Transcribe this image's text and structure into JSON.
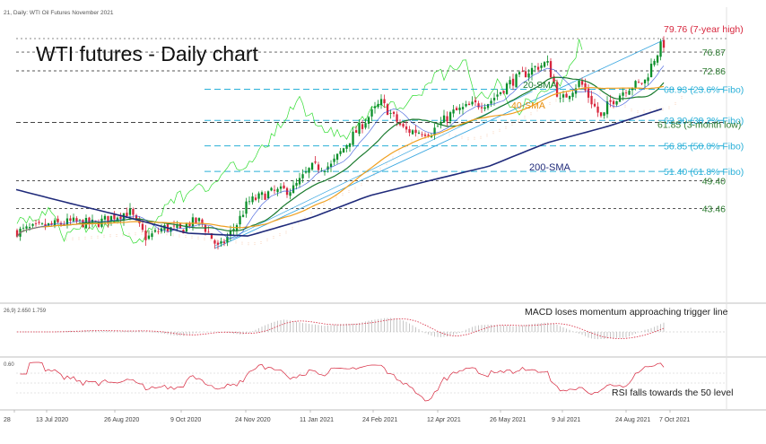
{
  "header": {
    "instrument_caption": "21, Daily:  WTI Oil Futures November 2021",
    "title": "WTI futures - Daily chart"
  },
  "colors": {
    "candle_up": "#0a8f2a",
    "candle_down": "#d7263d",
    "sma20": "#1a7a2e",
    "sma40": "#f0a020",
    "sma200": "#1f2a7a",
    "fibo": "#2ab0d8",
    "trendline": "#3aa7e0",
    "resistance_label": "#d7263d",
    "level_label": "#2e7d32",
    "lagging_line": "#33dd33",
    "macd_signal": "#d7263d",
    "rsi_line": "#d7263d"
  },
  "chart_data": [
    {
      "type": "candlestick",
      "title": "WTI futures - Daily chart",
      "x_tick_labels": [
        "28",
        "13 Jul 2020",
        "26 Aug 2020",
        "9 Oct 2020",
        "24 Nov 2020",
        "11 Jan 2021",
        "24 Feb 2021",
        "12 Apr 2021",
        "26 May 2021",
        "9 Jul 2021",
        "24 Aug 2021",
        "7 Oct 2021"
      ],
      "ylim": [
        28,
        82
      ],
      "price_path": [
        {
          "date": "2020-06-01",
          "price": 38.5
        },
        {
          "date": "2020-06-15",
          "price": 39.3
        },
        {
          "date": "2020-07-01",
          "price": 40.1
        },
        {
          "date": "2020-07-13",
          "price": 40.6
        },
        {
          "date": "2020-07-31",
          "price": 40.2
        },
        {
          "date": "2020-08-14",
          "price": 41.8
        },
        {
          "date": "2020-08-26",
          "price": 42.8
        },
        {
          "date": "2020-09-08",
          "price": 37.1
        },
        {
          "date": "2020-09-21",
          "price": 39.4
        },
        {
          "date": "2020-10-05",
          "price": 38.7
        },
        {
          "date": "2020-10-09",
          "price": 40.3
        },
        {
          "date": "2020-10-19",
          "price": 40.8
        },
        {
          "date": "2020-11-02",
          "price": 34.8
        },
        {
          "date": "2020-11-16",
          "price": 40.4
        },
        {
          "date": "2020-11-24",
          "price": 44.8
        },
        {
          "date": "2020-12-10",
          "price": 46.8
        },
        {
          "date": "2020-12-28",
          "price": 47.6
        },
        {
          "date": "2021-01-11",
          "price": 52.2
        },
        {
          "date": "2021-01-26",
          "price": 52.6
        },
        {
          "date": "2021-02-10",
          "price": 58.5
        },
        {
          "date": "2021-02-24",
          "price": 63.2
        },
        {
          "date": "2021-03-05",
          "price": 66.1
        },
        {
          "date": "2021-03-23",
          "price": 60.1
        },
        {
          "date": "2021-04-12",
          "price": 59.8
        },
        {
          "date": "2021-04-28",
          "price": 63.9
        },
        {
          "date": "2021-05-12",
          "price": 65.4
        },
        {
          "date": "2021-05-26",
          "price": 66.2
        },
        {
          "date": "2021-06-10",
          "price": 70.2
        },
        {
          "date": "2021-06-30",
          "price": 73.6
        },
        {
          "date": "2021-07-09",
          "price": 74.6
        },
        {
          "date": "2021-07-19",
          "price": 66.3
        },
        {
          "date": "2021-08-03",
          "price": 70.6
        },
        {
          "date": "2021-08-20",
          "price": 62.3
        },
        {
          "date": "2021-08-24",
          "price": 65.6
        },
        {
          "date": "2021-09-08",
          "price": 69.3
        },
        {
          "date": "2021-09-21",
          "price": 70.5
        },
        {
          "date": "2021-09-28",
          "price": 75.3
        },
        {
          "date": "2021-10-05",
          "price": 79.0
        },
        {
          "date": "2021-10-07",
          "price": 77.8
        }
      ],
      "sma_200_path": [
        {
          "date": "2020-06-01",
          "price": 47.5
        },
        {
          "date": "2020-07-13",
          "price": 44.5
        },
        {
          "date": "2020-08-26",
          "price": 41.5
        },
        {
          "date": "2020-10-09",
          "price": 38.2
        },
        {
          "date": "2020-11-24",
          "price": 37.6
        },
        {
          "date": "2021-01-11",
          "price": 41.5
        },
        {
          "date": "2021-02-24",
          "price": 46.2
        },
        {
          "date": "2021-04-12",
          "price": 49.5
        },
        {
          "date": "2021-05-26",
          "price": 52.5
        },
        {
          "date": "2021-07-09",
          "price": 57.5
        },
        {
          "date": "2021-08-24",
          "price": 61.0
        },
        {
          "date": "2021-10-07",
          "price": 65.0
        }
      ],
      "horizontal_levels": [
        {
          "value": 79.76,
          "label": "79.76 (7-year high)",
          "style": "resistance"
        },
        {
          "value": 76.87,
          "label": "76.87",
          "style": "level"
        },
        {
          "value": 72.86,
          "label": "72.86",
          "style": "level"
        },
        {
          "value": 68.93,
          "label": "68.93 (23.6% Fibo)",
          "style": "fibo"
        },
        {
          "value": 62.3,
          "label": "62.30 (38.2% Fibo)",
          "style": "fibo"
        },
        {
          "value": 61.85,
          "label": "61.85 (3-month low)",
          "style": "level"
        },
        {
          "value": 56.85,
          "label": "56.85 (50.0% Fibo)",
          "style": "fibo"
        },
        {
          "value": 51.4,
          "label": "51.40 (61.8% Fibo)",
          "style": "fibo"
        },
        {
          "value": 49.4,
          "label": "49.40",
          "style": "level"
        },
        {
          "value": 43.46,
          "label": "43.46",
          "style": "level"
        }
      ],
      "annotations": {
        "sma20": "20-SMA",
        "sma40": "40-SMA",
        "sma200": "200-SMA"
      }
    },
    {
      "type": "histogram",
      "title": "MACD",
      "caption": "26,9) 2.650  1.759",
      "annotation": "MACD loses momentum approaching trigger line"
    },
    {
      "type": "line",
      "title": "RSI",
      "caption": "0.60",
      "annotation": "RSI falls towards the 50 level"
    }
  ]
}
